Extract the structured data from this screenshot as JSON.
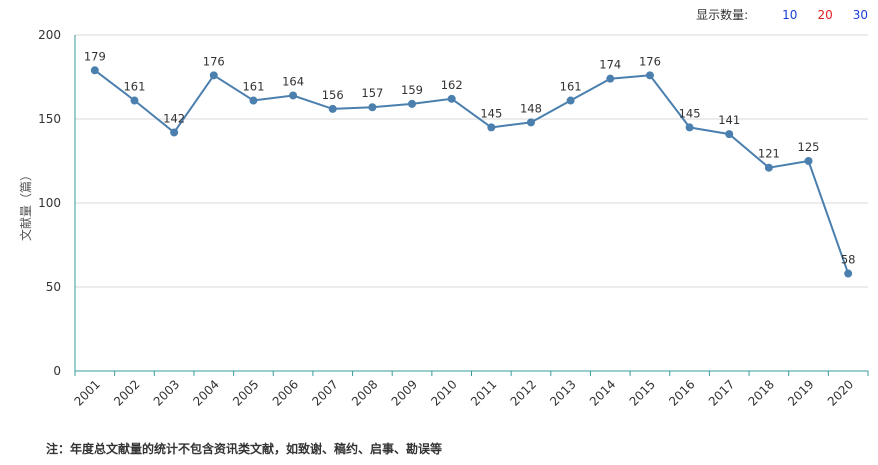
{
  "controls": {
    "label": "显示数量:",
    "options": [
      {
        "label": "10",
        "color": "#1a3fd6"
      },
      {
        "label": "20",
        "color": "#e01f1f"
      },
      {
        "label": "30",
        "color": "#1a3fd6"
      }
    ]
  },
  "note": "注：年度总文献量的统计不包含资讯类文献，如致谢、稿约、启事、勘误等",
  "chart_data": {
    "type": "line",
    "ylabel": "文献量（篇）",
    "xlabel": "",
    "ylim": [
      0,
      200
    ],
    "yticks": [
      0,
      50,
      100,
      150,
      200
    ],
    "grid": true,
    "x": [
      "2001",
      "2002",
      "2003",
      "2004",
      "2005",
      "2006",
      "2007",
      "2008",
      "2009",
      "2010",
      "2011",
      "2012",
      "2013",
      "2014",
      "2015",
      "2016",
      "2017",
      "2018",
      "2019",
      "2020"
    ],
    "series": [
      {
        "values": [
          179,
          161,
          142,
          176,
          161,
          164,
          156,
          157,
          159,
          162,
          145,
          148,
          161,
          174,
          176,
          145,
          141,
          121,
          125,
          58
        ],
        "color": "#4a7fae"
      }
    ]
  }
}
